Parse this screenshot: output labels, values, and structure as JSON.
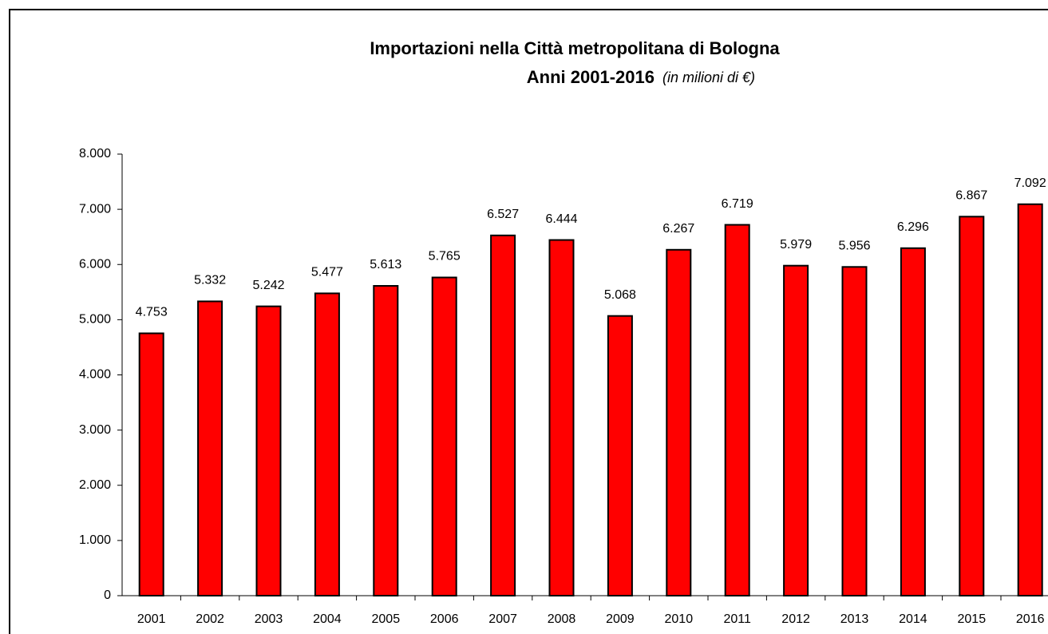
{
  "chart_data": {
    "type": "bar",
    "title": "Importazioni nella Città metropolitana di Bologna",
    "subtitle": "Anni 2001-2016",
    "unit_note": "(in milioni di €)",
    "categories": [
      "2001",
      "2002",
      "2003",
      "2004",
      "2005",
      "2006",
      "2007",
      "2008",
      "2009",
      "2010",
      "2011",
      "2012",
      "2013",
      "2014",
      "2015",
      "2016"
    ],
    "values": [
      4753,
      5332,
      5242,
      5477,
      5613,
      5765,
      6527,
      6444,
      5068,
      6267,
      6719,
      5979,
      5956,
      6296,
      6867,
      7092
    ],
    "value_labels": [
      "4.753",
      "5.332",
      "5.242",
      "5.477",
      "5.613",
      "5.765",
      "6.527",
      "6.444",
      "5.068",
      "6.267",
      "6.719",
      "5.979",
      "5.956",
      "6.296",
      "6.867",
      "7.092"
    ],
    "color": "#ff0000",
    "ylim": [
      0,
      8000
    ],
    "yticks": [
      0,
      {
        "value": 1000,
        "label": "1.000"
      },
      {
        "value": 2000,
        "label": "2.000"
      },
      {
        "value": 3000,
        "label": "3.000"
      },
      {
        "value": 4000,
        "label": "4.000"
      },
      {
        "value": 5000,
        "label": "5.000"
      },
      {
        "value": 6000,
        "label": "6.000"
      },
      {
        "value": 7000,
        "label": "7.000"
      },
      {
        "value": 8000,
        "label": "8.000"
      }
    ],
    "grid": false
  }
}
